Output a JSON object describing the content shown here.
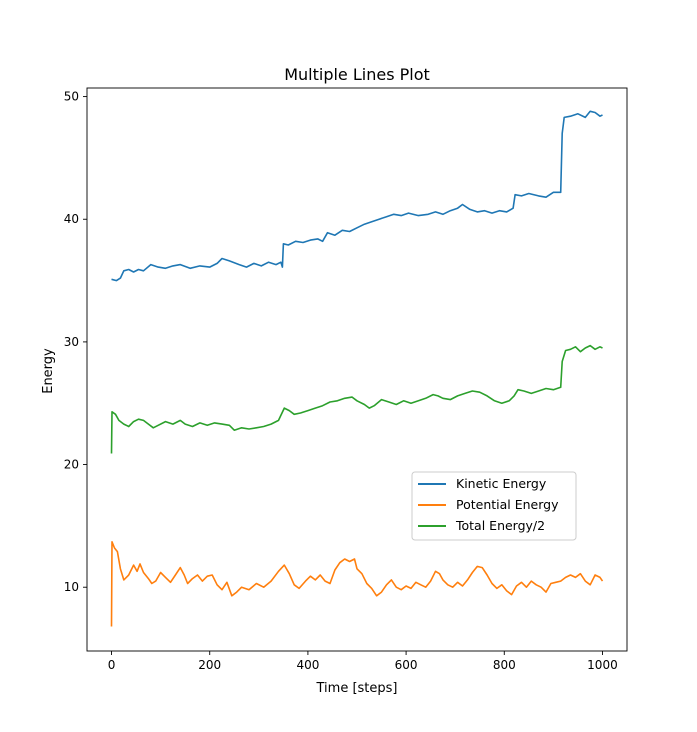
{
  "chart_data": {
    "type": "line",
    "title": "Multiple Lines Plot",
    "xlabel": "Time [steps]",
    "ylabel": "Energy",
    "xlim": [
      -50,
      1050
    ],
    "ylim": [
      4.8,
      50.7
    ],
    "xticks": [
      0,
      200,
      400,
      600,
      800,
      1000
    ],
    "yticks": [
      10,
      20,
      30,
      40,
      50
    ],
    "grid": false,
    "legend_position": "center-right",
    "series": [
      {
        "name": "Kinetic Energy",
        "color": "#1f77b4",
        "points": [
          [
            0,
            35.1
          ],
          [
            10,
            35.0
          ],
          [
            18,
            35.2
          ],
          [
            25,
            35.8
          ],
          [
            35,
            35.9
          ],
          [
            45,
            35.7
          ],
          [
            55,
            35.9
          ],
          [
            65,
            35.8
          ],
          [
            80,
            36.3
          ],
          [
            95,
            36.1
          ],
          [
            110,
            36.0
          ],
          [
            125,
            36.2
          ],
          [
            140,
            36.3
          ],
          [
            160,
            36.0
          ],
          [
            180,
            36.2
          ],
          [
            200,
            36.1
          ],
          [
            215,
            36.4
          ],
          [
            225,
            36.8
          ],
          [
            240,
            36.6
          ],
          [
            260,
            36.3
          ],
          [
            275,
            36.1
          ],
          [
            290,
            36.4
          ],
          [
            305,
            36.2
          ],
          [
            320,
            36.5
          ],
          [
            335,
            36.3
          ],
          [
            345,
            36.5
          ],
          [
            348,
            36.1
          ],
          [
            350,
            38.0
          ],
          [
            360,
            37.9
          ],
          [
            375,
            38.2
          ],
          [
            390,
            38.1
          ],
          [
            405,
            38.3
          ],
          [
            420,
            38.4
          ],
          [
            430,
            38.2
          ],
          [
            440,
            38.9
          ],
          [
            455,
            38.7
          ],
          [
            470,
            39.1
          ],
          [
            485,
            39.0
          ],
          [
            500,
            39.3
          ],
          [
            515,
            39.6
          ],
          [
            530,
            39.8
          ],
          [
            545,
            40.0
          ],
          [
            560,
            40.2
          ],
          [
            575,
            40.4
          ],
          [
            590,
            40.3
          ],
          [
            605,
            40.5
          ],
          [
            625,
            40.3
          ],
          [
            645,
            40.4
          ],
          [
            660,
            40.6
          ],
          [
            675,
            40.4
          ],
          [
            690,
            40.7
          ],
          [
            705,
            40.9
          ],
          [
            715,
            41.2
          ],
          [
            730,
            40.8
          ],
          [
            745,
            40.6
          ],
          [
            760,
            40.7
          ],
          [
            775,
            40.5
          ],
          [
            790,
            40.7
          ],
          [
            805,
            40.6
          ],
          [
            818,
            40.9
          ],
          [
            822,
            42.0
          ],
          [
            835,
            41.9
          ],
          [
            850,
            42.1
          ],
          [
            870,
            41.9
          ],
          [
            885,
            41.8
          ],
          [
            900,
            42.2
          ],
          [
            915,
            42.2
          ],
          [
            918,
            47.0
          ],
          [
            922,
            48.3
          ],
          [
            935,
            48.4
          ],
          [
            950,
            48.6
          ],
          [
            965,
            48.3
          ],
          [
            975,
            48.8
          ],
          [
            985,
            48.7
          ],
          [
            995,
            48.4
          ],
          [
            1000,
            48.5
          ]
        ]
      },
      {
        "name": "Potential Energy",
        "color": "#ff7f0e",
        "points": [
          [
            0,
            6.8
          ],
          [
            1,
            13.7
          ],
          [
            6,
            13.2
          ],
          [
            12,
            12.9
          ],
          [
            18,
            11.5
          ],
          [
            25,
            10.6
          ],
          [
            35,
            11.0
          ],
          [
            45,
            11.8
          ],
          [
            52,
            11.3
          ],
          [
            58,
            11.9
          ],
          [
            65,
            11.2
          ],
          [
            75,
            10.7
          ],
          [
            82,
            10.3
          ],
          [
            90,
            10.5
          ],
          [
            100,
            11.2
          ],
          [
            110,
            10.8
          ],
          [
            120,
            10.4
          ],
          [
            130,
            11.0
          ],
          [
            140,
            11.6
          ],
          [
            148,
            11.0
          ],
          [
            155,
            10.3
          ],
          [
            165,
            10.7
          ],
          [
            175,
            11.0
          ],
          [
            185,
            10.5
          ],
          [
            195,
            10.9
          ],
          [
            205,
            11.0
          ],
          [
            215,
            10.2
          ],
          [
            225,
            9.8
          ],
          [
            235,
            10.4
          ],
          [
            245,
            9.3
          ],
          [
            255,
            9.6
          ],
          [
            265,
            10.0
          ],
          [
            280,
            9.8
          ],
          [
            295,
            10.3
          ],
          [
            310,
            10.0
          ],
          [
            325,
            10.5
          ],
          [
            340,
            11.3
          ],
          [
            352,
            11.8
          ],
          [
            362,
            11.1
          ],
          [
            372,
            10.2
          ],
          [
            382,
            9.9
          ],
          [
            395,
            10.5
          ],
          [
            405,
            10.9
          ],
          [
            415,
            10.6
          ],
          [
            425,
            11.0
          ],
          [
            435,
            10.5
          ],
          [
            445,
            10.3
          ],
          [
            455,
            11.4
          ],
          [
            465,
            12.0
          ],
          [
            475,
            12.3
          ],
          [
            485,
            12.1
          ],
          [
            495,
            12.3
          ],
          [
            500,
            11.5
          ],
          [
            510,
            11.1
          ],
          [
            520,
            10.3
          ],
          [
            530,
            9.9
          ],
          [
            540,
            9.3
          ],
          [
            550,
            9.6
          ],
          [
            560,
            10.2
          ],
          [
            570,
            10.6
          ],
          [
            580,
            10.0
          ],
          [
            590,
            9.8
          ],
          [
            600,
            10.1
          ],
          [
            610,
            9.9
          ],
          [
            620,
            10.4
          ],
          [
            630,
            10.2
          ],
          [
            640,
            10.0
          ],
          [
            650,
            10.5
          ],
          [
            660,
            11.3
          ],
          [
            668,
            11.1
          ],
          [
            675,
            10.6
          ],
          [
            685,
            10.2
          ],
          [
            695,
            10.0
          ],
          [
            705,
            10.4
          ],
          [
            715,
            10.1
          ],
          [
            725,
            10.6
          ],
          [
            735,
            11.2
          ],
          [
            745,
            11.7
          ],
          [
            755,
            11.6
          ],
          [
            765,
            11.0
          ],
          [
            775,
            10.3
          ],
          [
            785,
            9.9
          ],
          [
            795,
            10.2
          ],
          [
            805,
            9.7
          ],
          [
            815,
            9.4
          ],
          [
            825,
            10.1
          ],
          [
            835,
            10.4
          ],
          [
            845,
            10.0
          ],
          [
            855,
            10.5
          ],
          [
            865,
            10.2
          ],
          [
            875,
            10.0
          ],
          [
            885,
            9.6
          ],
          [
            895,
            10.3
          ],
          [
            905,
            10.4
          ],
          [
            915,
            10.5
          ],
          [
            925,
            10.8
          ],
          [
            935,
            11.0
          ],
          [
            945,
            10.8
          ],
          [
            955,
            11.1
          ],
          [
            965,
            10.5
          ],
          [
            975,
            10.2
          ],
          [
            985,
            11.0
          ],
          [
            995,
            10.8
          ],
          [
            1000,
            10.5
          ]
        ]
      },
      {
        "name": "Total Energy/2",
        "color": "#2ca02c",
        "points": [
          [
            0,
            20.9
          ],
          [
            1,
            24.3
          ],
          [
            8,
            24.1
          ],
          [
            15,
            23.6
          ],
          [
            25,
            23.3
          ],
          [
            35,
            23.1
          ],
          [
            45,
            23.5
          ],
          [
            55,
            23.7
          ],
          [
            65,
            23.6
          ],
          [
            75,
            23.3
          ],
          [
            85,
            23.0
          ],
          [
            95,
            23.2
          ],
          [
            110,
            23.5
          ],
          [
            125,
            23.3
          ],
          [
            140,
            23.6
          ],
          [
            150,
            23.3
          ],
          [
            165,
            23.1
          ],
          [
            180,
            23.4
          ],
          [
            195,
            23.2
          ],
          [
            210,
            23.4
          ],
          [
            225,
            23.3
          ],
          [
            240,
            23.2
          ],
          [
            250,
            22.8
          ],
          [
            265,
            23.0
          ],
          [
            280,
            22.9
          ],
          [
            295,
            23.0
          ],
          [
            310,
            23.1
          ],
          [
            325,
            23.3
          ],
          [
            340,
            23.6
          ],
          [
            352,
            24.6
          ],
          [
            362,
            24.4
          ],
          [
            372,
            24.1
          ],
          [
            385,
            24.2
          ],
          [
            400,
            24.4
          ],
          [
            415,
            24.6
          ],
          [
            430,
            24.8
          ],
          [
            445,
            25.1
          ],
          [
            460,
            25.2
          ],
          [
            475,
            25.4
          ],
          [
            490,
            25.5
          ],
          [
            500,
            25.2
          ],
          [
            515,
            24.9
          ],
          [
            525,
            24.6
          ],
          [
            535,
            24.8
          ],
          [
            550,
            25.3
          ],
          [
            565,
            25.1
          ],
          [
            580,
            24.9
          ],
          [
            595,
            25.2
          ],
          [
            610,
            25.0
          ],
          [
            625,
            25.2
          ],
          [
            640,
            25.4
          ],
          [
            655,
            25.7
          ],
          [
            665,
            25.6
          ],
          [
            675,
            25.4
          ],
          [
            690,
            25.3
          ],
          [
            705,
            25.6
          ],
          [
            720,
            25.8
          ],
          [
            735,
            26.0
          ],
          [
            750,
            25.9
          ],
          [
            765,
            25.6
          ],
          [
            780,
            25.2
          ],
          [
            795,
            25.0
          ],
          [
            810,
            25.2
          ],
          [
            820,
            25.6
          ],
          [
            828,
            26.1
          ],
          [
            840,
            26.0
          ],
          [
            855,
            25.8
          ],
          [
            870,
            26.0
          ],
          [
            885,
            26.2
          ],
          [
            900,
            26.1
          ],
          [
            915,
            26.3
          ],
          [
            918,
            28.4
          ],
          [
            925,
            29.3
          ],
          [
            935,
            29.4
          ],
          [
            945,
            29.6
          ],
          [
            955,
            29.2
          ],
          [
            965,
            29.5
          ],
          [
            975,
            29.7
          ],
          [
            985,
            29.4
          ],
          [
            995,
            29.6
          ],
          [
            1000,
            29.5
          ]
        ]
      }
    ]
  }
}
